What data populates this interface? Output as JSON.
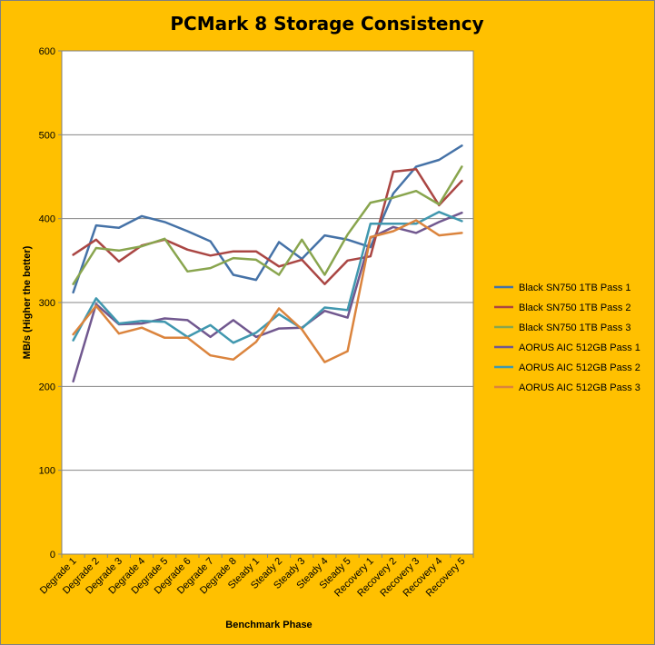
{
  "chart_data": {
    "type": "line",
    "title": "PCMark 8 Storage Consistency",
    "xlabel": "Benchmark Phase",
    "ylabel": "MB/s (Higher the better)",
    "ylim": [
      0,
      600
    ],
    "yticks": [
      0,
      100,
      200,
      300,
      400,
      500,
      600
    ],
    "grid": true,
    "legend_position": "right",
    "categories": [
      "Degrade 1",
      "Degrade 2",
      "Degrade 3",
      "Degrade 4",
      "Degrade 5",
      "Degrade 6",
      "Degrade 7",
      "Degrade 8",
      "Steady 1",
      "Steady 2",
      "Steady 3",
      "Steady 4",
      "Steady 5",
      "Recovery 1",
      "Recovery 2",
      "Recovery 3",
      "Recovery 4",
      "Recovery 5"
    ],
    "series": [
      {
        "name": "Black SN750 1TB Pass 1",
        "color": "#4572A7",
        "values": [
          312,
          392,
          389,
          403,
          396,
          385,
          373,
          333,
          327,
          372,
          352,
          380,
          375,
          366,
          430,
          462,
          470,
          487
        ]
      },
      {
        "name": "Black SN750 1TB Pass 2",
        "color": "#AA4643",
        "values": [
          357,
          375,
          349,
          368,
          375,
          363,
          356,
          361,
          361,
          343,
          351,
          322,
          350,
          355,
          456,
          459,
          416,
          445
        ]
      },
      {
        "name": "Black SN750 1TB Pass 3",
        "color": "#89A54E",
        "values": [
          322,
          365,
          362,
          367,
          376,
          337,
          341,
          353,
          351,
          333,
          375,
          333,
          381,
          419,
          425,
          433,
          417,
          462
        ]
      },
      {
        "name": "AORUS AIC 512GB Pass 1",
        "color": "#71588F",
        "values": [
          206,
          298,
          274,
          275,
          281,
          279,
          259,
          279,
          259,
          269,
          270,
          290,
          282,
          377,
          390,
          383,
          396,
          407
        ]
      },
      {
        "name": "AORUS AIC 512GB Pass 2",
        "color": "#4198AF",
        "values": [
          255,
          305,
          275,
          278,
          277,
          259,
          273,
          252,
          264,
          286,
          269,
          294,
          291,
          394,
          394,
          394,
          408,
          397
        ]
      },
      {
        "name": "AORUS AIC 512GB Pass 3",
        "color": "#DB843D",
        "values": [
          262,
          296,
          263,
          270,
          258,
          258,
          237,
          232,
          253,
          293,
          268,
          229,
          242,
          378,
          385,
          398,
          380,
          383
        ]
      }
    ]
  }
}
